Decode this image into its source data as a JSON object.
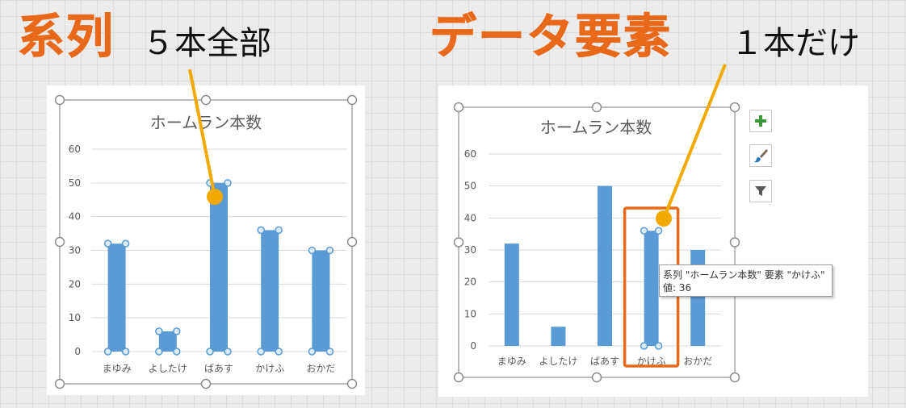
{
  "labels": {
    "series_title": "系列",
    "series_note": "５本全部",
    "element_title": "データ要素",
    "element_note": "１本だけ"
  },
  "colors": {
    "accent": "#e8691a",
    "bar": "#5b9bd5",
    "callout": "#f2a900",
    "handle_fill": "#dcebf8",
    "frame_border": "#a6a6a6",
    "highlight_box": "#e8691a"
  },
  "chart_buttons": [
    {
      "name": "chart-elements-button",
      "icon": "plus-icon"
    },
    {
      "name": "chart-styles-button",
      "icon": "brush-icon"
    },
    {
      "name": "chart-filters-button",
      "icon": "filter-icon"
    }
  ],
  "tooltip": {
    "line1": "系列 \"ホームラン本数\" 要素 \"かけふ\"",
    "line2": "値: 36"
  },
  "chart_data": [
    {
      "type": "bar",
      "title": "ホームラン本数",
      "categories": [
        "まゆみ",
        "よしたけ",
        "ばあす",
        "かけふ",
        "おかだ"
      ],
      "values": [
        32,
        6,
        50,
        36,
        30
      ],
      "ylim": [
        0,
        60
      ],
      "yticks": [
        0,
        10,
        20,
        30,
        40,
        50,
        60
      ],
      "grid": true,
      "legend": false,
      "selection": "series"
    },
    {
      "type": "bar",
      "title": "ホームラン本数",
      "categories": [
        "まゆみ",
        "よしたけ",
        "ばあす",
        "かけふ",
        "おかだ"
      ],
      "values": [
        32,
        6,
        50,
        36,
        30
      ],
      "ylim": [
        0,
        60
      ],
      "yticks": [
        0,
        10,
        20,
        30,
        40,
        50,
        60
      ],
      "grid": true,
      "legend": false,
      "selection": "point",
      "selected_index": 3
    }
  ]
}
